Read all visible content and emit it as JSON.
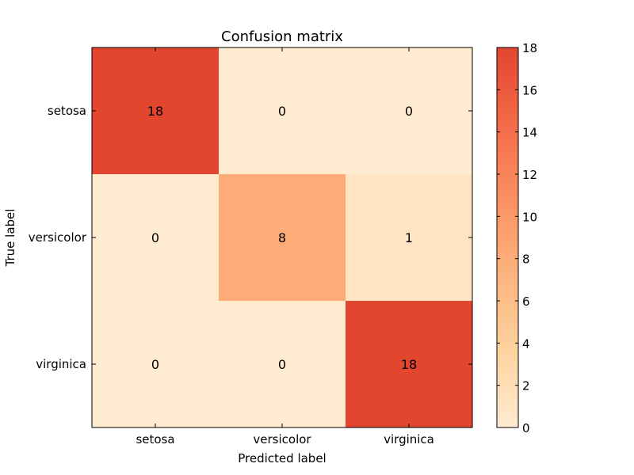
{
  "chart_data": {
    "type": "heatmap",
    "title": "Confusion matrix",
    "xlabel": "Predicted label",
    "ylabel": "True label",
    "x_categories": [
      "setosa",
      "versicolor",
      "virginica"
    ],
    "y_categories": [
      "setosa",
      "versicolor",
      "virginica"
    ],
    "values": [
      [
        18,
        0,
        0
      ],
      [
        0,
        8,
        1
      ],
      [
        0,
        0,
        18
      ]
    ],
    "colorbar": {
      "range": [
        0,
        18
      ],
      "ticks": [
        0,
        2,
        4,
        6,
        8,
        10,
        12,
        14,
        16,
        18
      ],
      "colors": [
        "#fff5eb",
        "#fee6ce",
        "#fdd0a2",
        "#fdae6b",
        "#fd8d3c",
        "#f16913",
        "#d94801",
        "#a63603",
        "#7f2704"
      ],
      "display_colors": [
        "#feebd0",
        "#fdd39f",
        "#fcb47f",
        "#fb9062",
        "#f46a4a",
        "#e2462f"
      ]
    },
    "grid": false
  }
}
